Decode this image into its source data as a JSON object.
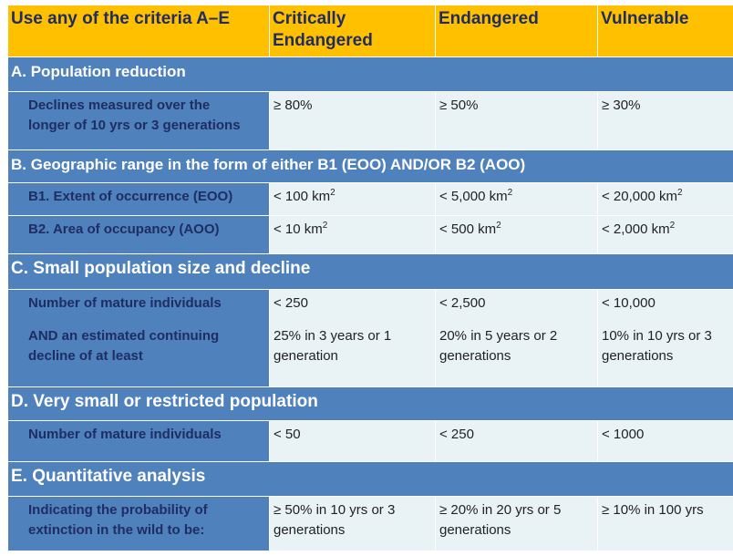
{
  "header": {
    "criteria": "Use any of the criteria A–E",
    "critically": "Critically Endangered",
    "critically_line1": "Critically",
    "critically_line2": "Endangered",
    "endangered": "Endangered",
    "vulnerable": "Vulnerable"
  },
  "sections": {
    "a": {
      "title": "A. Population reduction",
      "rows": [
        {
          "label_line1": "Declines measured over the",
          "label_line2": "longer of 10 yrs or 3 generations",
          "cr": "≥ 80%",
          "en": "≥ 50%",
          "vu": "≥ 30%"
        }
      ]
    },
    "b": {
      "title": "B. Geographic range in the form of either B1 (EOO) AND/OR B2 (AOO)",
      "rows": [
        {
          "label": "B1. Extent of occurrence (EOO)",
          "cr": "< 100 km",
          "en": "< 5,000 km",
          "vu": "< 20,000 km",
          "unit_sup": "2"
        },
        {
          "label": "B2. Area of occupancy (AOO)",
          "cr": "< 10 km",
          "en": "< 500 km",
          "vu": "< 2,000 km",
          "unit_sup": "2"
        }
      ]
    },
    "c": {
      "title": "C. Small population size and decline",
      "rows": [
        {
          "label1": "Number of mature individuals",
          "label2_line1": "AND an estimated continuing",
          "label2_line2": "decline of at least",
          "cr1": "< 250",
          "en1": "< 2,500",
          "vu1": "< 10,000",
          "cr2_line1": "25% in 3 years or 1",
          "cr2_line2": "generation",
          "en2_line1": "20% in 5 years or 2",
          "en2_line2": "generations",
          "vu2_line1": "10% in 10 yrs or 3",
          "vu2_line2": "generations"
        }
      ]
    },
    "d": {
      "title": "D. Very small or restricted population",
      "rows": [
        {
          "label": "Number of mature individuals",
          "cr": "< 50",
          "en": "< 250",
          "vu": "< 1000"
        }
      ]
    },
    "e": {
      "title": "E. Quantitative analysis",
      "rows": [
        {
          "label_line1": "Indicating the probability of",
          "label_line2": "extinction in the wild to be:",
          "cr_line1": "≥ 50% in 10 yrs or 3",
          "cr_line2": "generations",
          "en_line1": "≥ 20% in 20 yrs or 5",
          "en_line2": "generations",
          "vu": "≥ 10% in 100 yrs"
        }
      ]
    }
  },
  "colors": {
    "header_bg": "#ffc000",
    "header_text": "#1f2d63",
    "section_bg": "#4f81bd",
    "value_bg": "#e9f3f6"
  }
}
